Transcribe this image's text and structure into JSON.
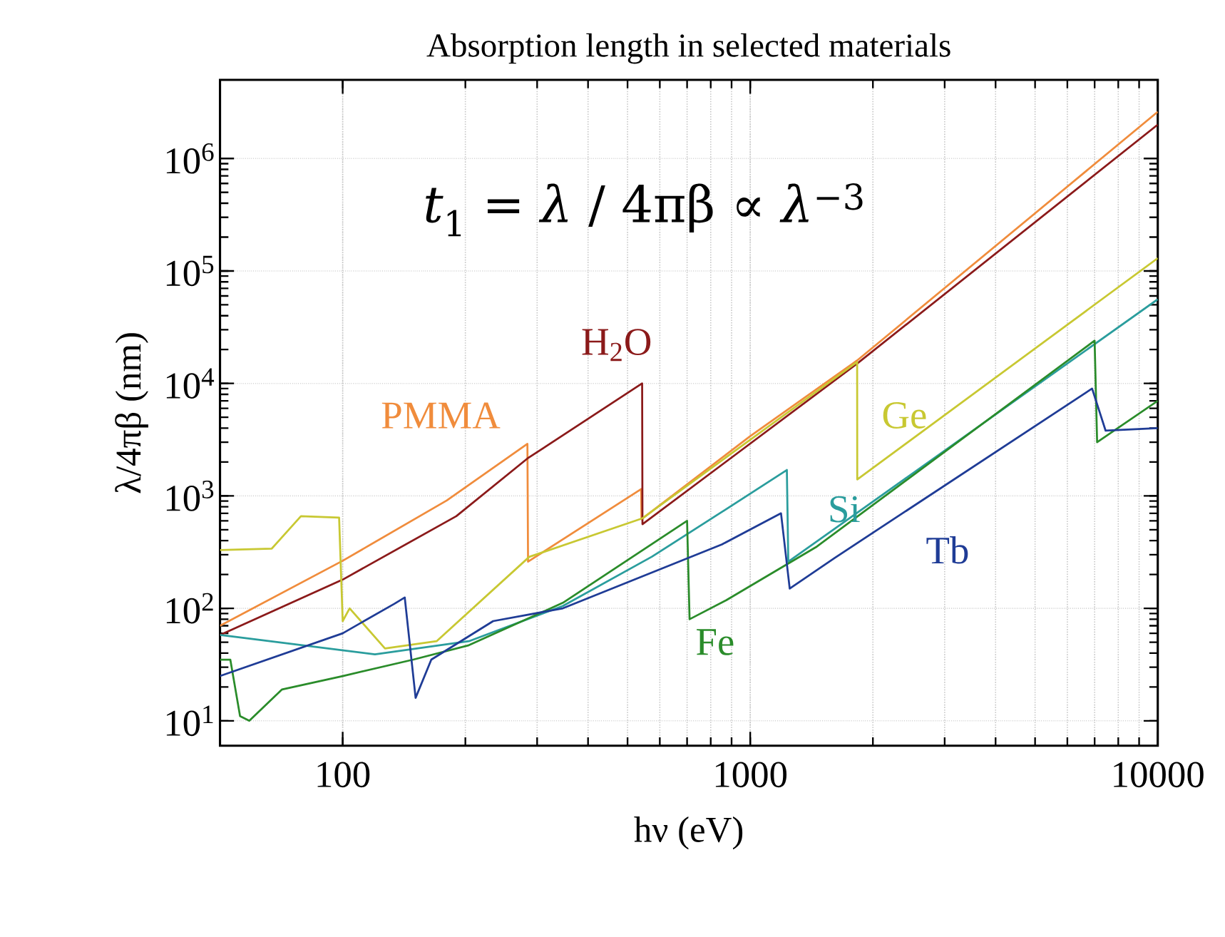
{
  "chart_data": {
    "type": "line",
    "title": "Absorption length in selected materials",
    "xlabel": "hν (eV)",
    "ylabel": "λ/4πβ (nm)",
    "log": "xy",
    "grid": true,
    "legend": false,
    "xlim": [
      50,
      10000
    ],
    "ylim": [
      6,
      5000000
    ],
    "xticks": [
      100,
      1000,
      10000
    ],
    "yticks": [
      {
        "value": 10,
        "label": "10$^{1}$"
      },
      {
        "value": 100,
        "label": "10$^{2}$"
      },
      {
        "value": 1000,
        "label": "10$^{3}$"
      },
      {
        "value": 10000,
        "label": "10$^{4}$"
      },
      {
        "value": 100000,
        "label": "10$^{5}$"
      },
      {
        "value": 1000000,
        "label": "10$^{6}$"
      }
    ],
    "annotations": [
      "*t*$_{1}$ = *λ* / 4πβ ∝ *λ*$^{−3}$"
    ],
    "series": [
      {
        "name": "PMMA",
        "color": "#f08c3c",
        "x": [
          50,
          100,
          180,
          284,
          285,
          540,
          541,
          1000,
          1830,
          10000
        ],
        "values": [
          70,
          265,
          910,
          2900,
          260,
          1150,
          620,
          3400,
          16000,
          2600000
        ]
      },
      {
        "name": "H$_{2}$O",
        "color": "#8b1a1a",
        "x": [
          50,
          100,
          190,
          284,
          543,
          544,
          1830,
          10000
        ],
        "values": [
          58,
          180,
          660,
          2150,
          10000,
          560,
          15000,
          2000000
        ]
      },
      {
        "name": "Ge",
        "color": "#c8c832",
        "x": [
          50,
          67,
          79,
          98,
          100,
          104,
          127,
          170,
          287,
          543,
          1830,
          1831,
          10000
        ],
        "values": [
          330,
          340,
          660,
          640,
          77,
          100,
          44,
          51,
          287,
          630,
          15500,
          1400,
          130000
        ]
      },
      {
        "name": "Si",
        "color": "#2a9d9d",
        "x": [
          50,
          120,
          204,
          347,
          574,
          852,
          1230,
          1240,
          10000
        ],
        "values": [
          58,
          39,
          51,
          105,
          288,
          720,
          1700,
          260,
          56000
        ]
      },
      {
        "name": "Fe",
        "color": "#2a8c2a",
        "x": [
          50,
          53,
          56,
          59,
          71,
          100,
          149,
          204,
          347,
          700,
          710,
          873,
          1450,
          7000,
          7100,
          10000
        ],
        "values": [
          35,
          35,
          11,
          10,
          19,
          25,
          35,
          47,
          112,
          600,
          80,
          118,
          350,
          24000,
          3000,
          7000
        ]
      },
      {
        "name": "Tb",
        "color": "#1f3c96",
        "x": [
          50,
          100,
          134,
          142,
          151,
          165,
          234,
          347,
          852,
          1190,
          1250,
          1610,
          6900,
          7450,
          10000
        ],
        "values": [
          25,
          60,
          110,
          125,
          16,
          35,
          77,
          100,
          370,
          700,
          150,
          280,
          9000,
          3800,
          4000
        ]
      }
    ]
  }
}
